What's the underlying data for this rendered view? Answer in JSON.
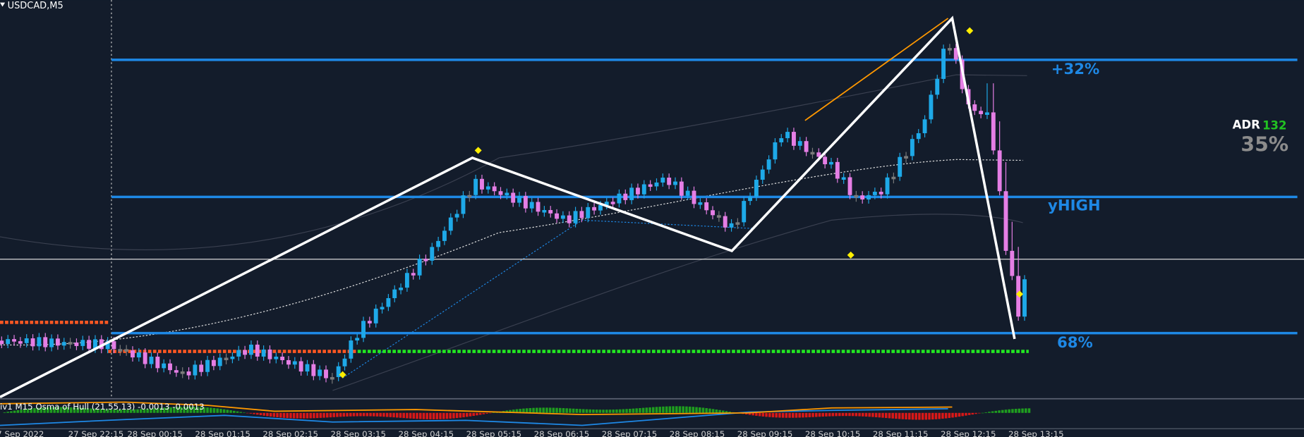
{
  "header": {
    "symbol": "USDCAD,M5"
  },
  "levels": [
    {
      "label": "+32%"
    },
    {
      "label": "yHIGH"
    },
    {
      "label": "68%"
    }
  ],
  "adr": {
    "label": "ADR",
    "value": "132",
    "percent": "35%"
  },
  "indicator": {
    "label": "iv1 M15 Osma of Hull (21,55,13) -0.0013 -0.0013"
  },
  "time_axis": [
    "7 Sep 2022",
    "27 Sep 22:15",
    "28 Sep 00:15",
    "28 Sep 01:15",
    "28 Sep 02:15",
    "28 Sep 03:15",
    "28 Sep 04:15",
    "28 Sep 05:15",
    "28 Sep 06:15",
    "28 Sep 07:15",
    "28 Sep 08:15",
    "28 Sep 09:15",
    "28 Sep 10:15",
    "28 Sep 11:15",
    "28 Sep 12:15",
    "28 Sep 13:15"
  ]
}
